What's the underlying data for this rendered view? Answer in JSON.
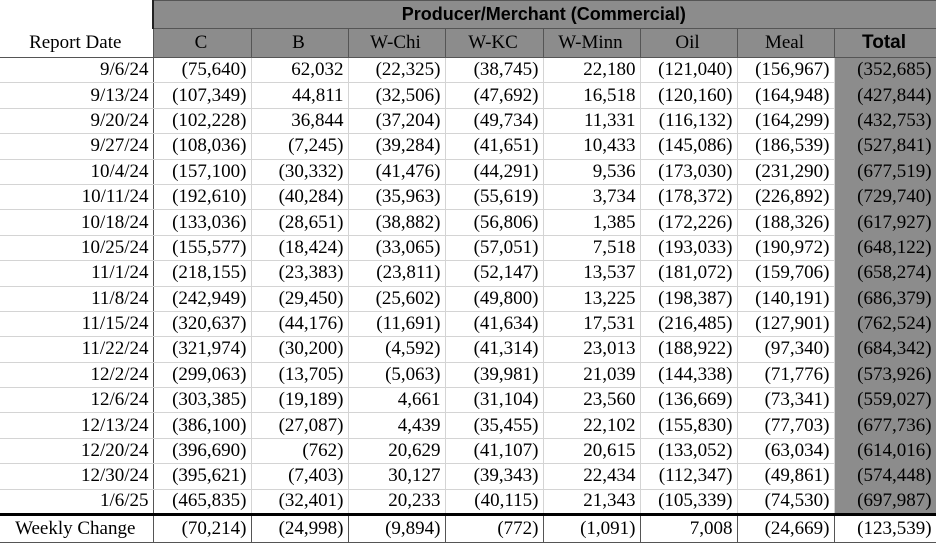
{
  "group_title": "Producer/Merchant (Commercial)",
  "columns": {
    "date": "Report Date",
    "c": "C",
    "b": "B",
    "wchi": "W-Chi",
    "wkc": "W-KC",
    "wminn": "W-Minn",
    "oil": "Oil",
    "meal": "Meal",
    "total": "Total"
  },
  "rows": [
    {
      "date": "9/6/24",
      "c": "(75,640)",
      "b": "62,032",
      "wchi": "(22,325)",
      "wkc": "(38,745)",
      "wminn": "22,180",
      "oil": "(121,040)",
      "meal": "(156,967)",
      "total": "(352,685)"
    },
    {
      "date": "9/13/24",
      "c": "(107,349)",
      "b": "44,811",
      "wchi": "(32,506)",
      "wkc": "(47,692)",
      "wminn": "16,518",
      "oil": "(120,160)",
      "meal": "(164,948)",
      "total": "(427,844)"
    },
    {
      "date": "9/20/24",
      "c": "(102,228)",
      "b": "36,844",
      "wchi": "(37,204)",
      "wkc": "(49,734)",
      "wminn": "11,331",
      "oil": "(116,132)",
      "meal": "(164,299)",
      "total": "(432,753)"
    },
    {
      "date": "9/27/24",
      "c": "(108,036)",
      "b": "(7,245)",
      "wchi": "(39,284)",
      "wkc": "(41,651)",
      "wminn": "10,433",
      "oil": "(145,086)",
      "meal": "(186,539)",
      "total": "(527,841)"
    },
    {
      "date": "10/4/24",
      "c": "(157,100)",
      "b": "(30,332)",
      "wchi": "(41,476)",
      "wkc": "(44,291)",
      "wminn": "9,536",
      "oil": "(173,030)",
      "meal": "(231,290)",
      "total": "(677,519)"
    },
    {
      "date": "10/11/24",
      "c": "(192,610)",
      "b": "(40,284)",
      "wchi": "(35,963)",
      "wkc": "(55,619)",
      "wminn": "3,734",
      "oil": "(178,372)",
      "meal": "(226,892)",
      "total": "(729,740)"
    },
    {
      "date": "10/18/24",
      "c": "(133,036)",
      "b": "(28,651)",
      "wchi": "(38,882)",
      "wkc": "(56,806)",
      "wminn": "1,385",
      "oil": "(172,226)",
      "meal": "(188,326)",
      "total": "(617,927)"
    },
    {
      "date": "10/25/24",
      "c": "(155,577)",
      "b": "(18,424)",
      "wchi": "(33,065)",
      "wkc": "(57,051)",
      "wminn": "7,518",
      "oil": "(193,033)",
      "meal": "(190,972)",
      "total": "(648,122)"
    },
    {
      "date": "11/1/24",
      "c": "(218,155)",
      "b": "(23,383)",
      "wchi": "(23,811)",
      "wkc": "(52,147)",
      "wminn": "13,537",
      "oil": "(181,072)",
      "meal": "(159,706)",
      "total": "(658,274)"
    },
    {
      "date": "11/8/24",
      "c": "(242,949)",
      "b": "(29,450)",
      "wchi": "(25,602)",
      "wkc": "(49,800)",
      "wminn": "13,225",
      "oil": "(198,387)",
      "meal": "(140,191)",
      "total": "(686,379)"
    },
    {
      "date": "11/15/24",
      "c": "(320,637)",
      "b": "(44,176)",
      "wchi": "(11,691)",
      "wkc": "(41,634)",
      "wminn": "17,531",
      "oil": "(216,485)",
      "meal": "(127,901)",
      "total": "(762,524)"
    },
    {
      "date": "11/22/24",
      "c": "(321,974)",
      "b": "(30,200)",
      "wchi": "(4,592)",
      "wkc": "(41,314)",
      "wminn": "23,013",
      "oil": "(188,922)",
      "meal": "(97,340)",
      "total": "(684,342)"
    },
    {
      "date": "12/2/24",
      "c": "(299,063)",
      "b": "(13,705)",
      "wchi": "(5,063)",
      "wkc": "(39,981)",
      "wminn": "21,039",
      "oil": "(144,338)",
      "meal": "(71,776)",
      "total": "(573,926)"
    },
    {
      "date": "12/6/24",
      "c": "(303,385)",
      "b": "(19,189)",
      "wchi": "4,661",
      "wkc": "(31,104)",
      "wminn": "23,560",
      "oil": "(136,669)",
      "meal": "(73,341)",
      "total": "(559,027)"
    },
    {
      "date": "12/13/24",
      "c": "(386,100)",
      "b": "(27,087)",
      "wchi": "4,439",
      "wkc": "(35,455)",
      "wminn": "22,102",
      "oil": "(155,830)",
      "meal": "(77,703)",
      "total": "(677,736)"
    },
    {
      "date": "12/20/24",
      "c": "(396,690)",
      "b": "(762)",
      "wchi": "20,629",
      "wkc": "(41,107)",
      "wminn": "20,615",
      "oil": "(133,052)",
      "meal": "(63,034)",
      "total": "(614,016)"
    },
    {
      "date": "12/30/24",
      "c": "(395,621)",
      "b": "(7,403)",
      "wchi": "30,127",
      "wkc": "(39,343)",
      "wminn": "22,434",
      "oil": "(112,347)",
      "meal": "(49,861)",
      "total": "(574,448)"
    },
    {
      "date": "1/6/25",
      "c": "(465,835)",
      "b": "(32,401)",
      "wchi": "20,233",
      "wkc": "(40,115)",
      "wminn": "21,343",
      "oil": "(105,339)",
      "meal": "(74,530)",
      "total": "(697,987)"
    }
  ],
  "weekly_change": {
    "label": "Weekly Change",
    "c": "(70,214)",
    "b": "(24,998)",
    "wchi": "(9,894)",
    "wkc": "(772)",
    "wminn": "(1,091)",
    "oil": "7,008",
    "meal": "(24,669)",
    "total": "(123,539)"
  },
  "colors": {
    "header_fill": "#8c8c8c",
    "gridline": "#d4d4d4",
    "border": "#555555"
  }
}
